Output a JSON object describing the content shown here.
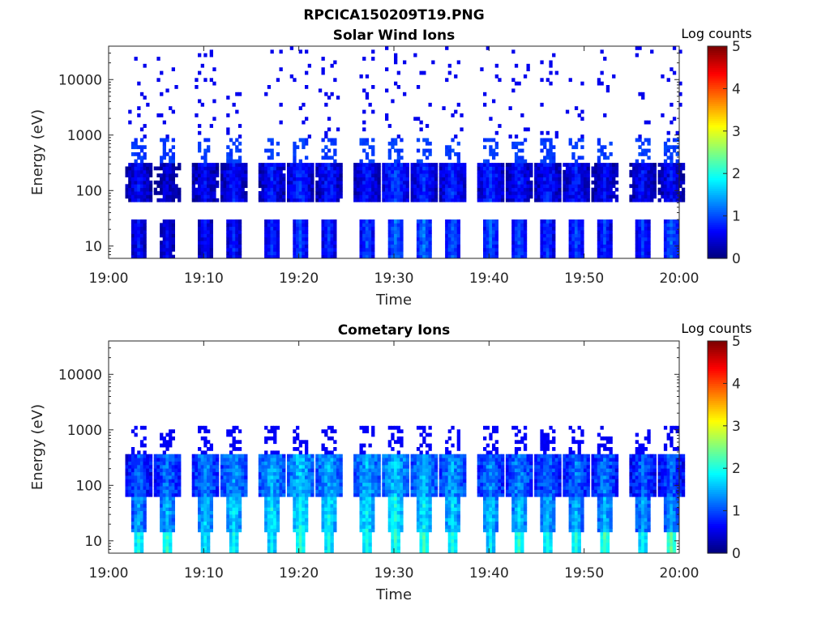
{
  "figure_title": "RPCICA150209T19.PNG",
  "colors": {
    "axis": "#262626",
    "background": "#ffffff"
  },
  "chart_data": [
    {
      "type": "heatmap",
      "title": "Solar Wind Ions",
      "xlabel": "Time",
      "ylabel": "Energy (eV)",
      "x_ticks": [
        "19:00",
        "19:10",
        "19:20",
        "19:30",
        "19:40",
        "19:50",
        "20:00"
      ],
      "y_ticks": [
        "10",
        "100",
        "1000",
        "10000"
      ],
      "y_scale": "log",
      "ylim": [
        6,
        40000
      ],
      "xlim": [
        "19:00",
        "20:00"
      ],
      "colorbar": {
        "label": "Log counts",
        "ticks": [
          "0",
          "1",
          "2",
          "3",
          "4",
          "5"
        ],
        "range": [
          0,
          5
        ],
        "colormap": "jet"
      },
      "bursts": [
        {
          "t": "19:03",
          "low": 0.9,
          "mid": 0.9
        },
        {
          "t": "19:06",
          "low": 0.8,
          "mid": 0.7
        },
        {
          "t": "19:10",
          "low": 0.9,
          "mid": 0.9
        },
        {
          "t": "19:13",
          "low": 1.0,
          "mid": 1.0
        },
        {
          "t": "19:17",
          "low": 1.1,
          "mid": 1.0
        },
        {
          "t": "19:20",
          "low": 1.2,
          "mid": 1.1
        },
        {
          "t": "19:23",
          "low": 1.1,
          "mid": 1.0
        },
        {
          "t": "19:27",
          "low": 1.2,
          "mid": 1.0
        },
        {
          "t": "19:30",
          "low": 1.4,
          "mid": 1.2
        },
        {
          "t": "19:33",
          "low": 1.4,
          "mid": 1.1
        },
        {
          "t": "19:36",
          "low": 1.3,
          "mid": 1.1
        },
        {
          "t": "19:40",
          "low": 1.3,
          "mid": 1.1
        },
        {
          "t": "19:43",
          "low": 1.2,
          "mid": 1.0
        },
        {
          "t": "19:46",
          "low": 1.1,
          "mid": 1.0
        },
        {
          "t": "19:49",
          "low": 1.2,
          "mid": 1.0
        },
        {
          "t": "19:52",
          "low": 1.1,
          "mid": 0.9
        },
        {
          "t": "19:56",
          "low": 1.1,
          "mid": 0.9
        },
        {
          "t": "19:59",
          "low": 1.3,
          "mid": 0.9
        }
      ]
    },
    {
      "type": "heatmap",
      "title": "Cometary Ions",
      "xlabel": "Time",
      "ylabel": "Energy (eV)",
      "x_ticks": [
        "19:00",
        "19:10",
        "19:20",
        "19:30",
        "19:40",
        "19:50",
        "20:00"
      ],
      "y_ticks": [
        "10",
        "100",
        "1000",
        "10000"
      ],
      "y_scale": "log",
      "ylim": [
        6,
        40000
      ],
      "xlim": [
        "19:00",
        "20:00"
      ],
      "colorbar": {
        "label": "Log counts",
        "ticks": [
          "0",
          "1",
          "2",
          "3",
          "4",
          "5"
        ],
        "range": [
          0,
          5
        ],
        "colormap": "jet"
      },
      "bursts": [
        {
          "t": "19:03",
          "low": 2.2,
          "mid": 1.4
        },
        {
          "t": "19:06",
          "low": 2.3,
          "mid": 1.5
        },
        {
          "t": "19:10",
          "low": 2.0,
          "mid": 1.6
        },
        {
          "t": "19:13",
          "low": 2.1,
          "mid": 1.7
        },
        {
          "t": "19:17",
          "low": 2.0,
          "mid": 1.8
        },
        {
          "t": "19:20",
          "low": 2.3,
          "mid": 1.9
        },
        {
          "t": "19:23",
          "low": 2.1,
          "mid": 1.8
        },
        {
          "t": "19:27",
          "low": 2.2,
          "mid": 1.8
        },
        {
          "t": "19:30",
          "low": 2.3,
          "mid": 1.9
        },
        {
          "t": "19:33",
          "low": 2.4,
          "mid": 1.8
        },
        {
          "t": "19:36",
          "low": 2.2,
          "mid": 1.7
        },
        {
          "t": "19:40",
          "low": 2.0,
          "mid": 1.6
        },
        {
          "t": "19:43",
          "low": 2.3,
          "mid": 1.6
        },
        {
          "t": "19:46",
          "low": 2.2,
          "mid": 1.5
        },
        {
          "t": "19:49",
          "low": 2.2,
          "mid": 1.5
        },
        {
          "t": "19:52",
          "low": 2.4,
          "mid": 1.5
        },
        {
          "t": "19:56",
          "low": 2.1,
          "mid": 1.4
        },
        {
          "t": "19:59",
          "low": 2.5,
          "mid": 1.4
        }
      ]
    }
  ]
}
